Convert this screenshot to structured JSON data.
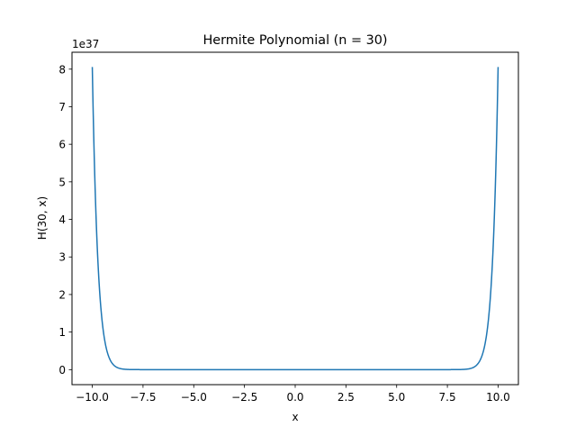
{
  "chart_data": {
    "type": "line",
    "title": "Hermite Polynomial (n = 30)",
    "xlabel": "x",
    "ylabel": "H(30, x)",
    "y_offset_text": "1e37",
    "y_scale_factor": 1e+37,
    "xlim": [
      -11.0,
      11.0
    ],
    "ylim": [
      -0.4,
      8.45
    ],
    "x_ticks": [
      -10.0,
      -7.5,
      -5.0,
      -2.5,
      0.0,
      2.5,
      5.0,
      7.5,
      10.0
    ],
    "x_tick_labels": [
      "−10.0",
      "−7.5",
      "−5.0",
      "−2.5",
      "0.0",
      "2.5",
      "5.0",
      "7.5",
      "10.0"
    ],
    "y_ticks": [
      0,
      1,
      2,
      3,
      4,
      5,
      6,
      7,
      8
    ],
    "y_tick_labels": [
      "0",
      "1",
      "2",
      "3",
      "4",
      "5",
      "6",
      "7",
      "8"
    ],
    "grid": false,
    "legend": "none",
    "series": [
      {
        "color": "#1f77b4",
        "function": "hermite",
        "n": 30,
        "x_range": [
          -10,
          10
        ],
        "num_points": 1000,
        "sample_points": [
          {
            "x": -10.0,
            "y": 8.06
          },
          {
            "x": -9.5,
            "y": 1.5
          },
          {
            "x": -9.0,
            "y": 0.3
          },
          {
            "x": -8.5,
            "y": 0.05
          },
          {
            "x": 0.0,
            "y": 0.0
          },
          {
            "x": 8.5,
            "y": 0.05
          },
          {
            "x": 9.0,
            "y": 0.3
          },
          {
            "x": 9.5,
            "y": 1.5
          },
          {
            "x": 10.0,
            "y": 8.06
          }
        ]
      }
    ]
  },
  "colors": {
    "line": "#1f77b4",
    "axes": "#000000",
    "background": "#ffffff"
  }
}
